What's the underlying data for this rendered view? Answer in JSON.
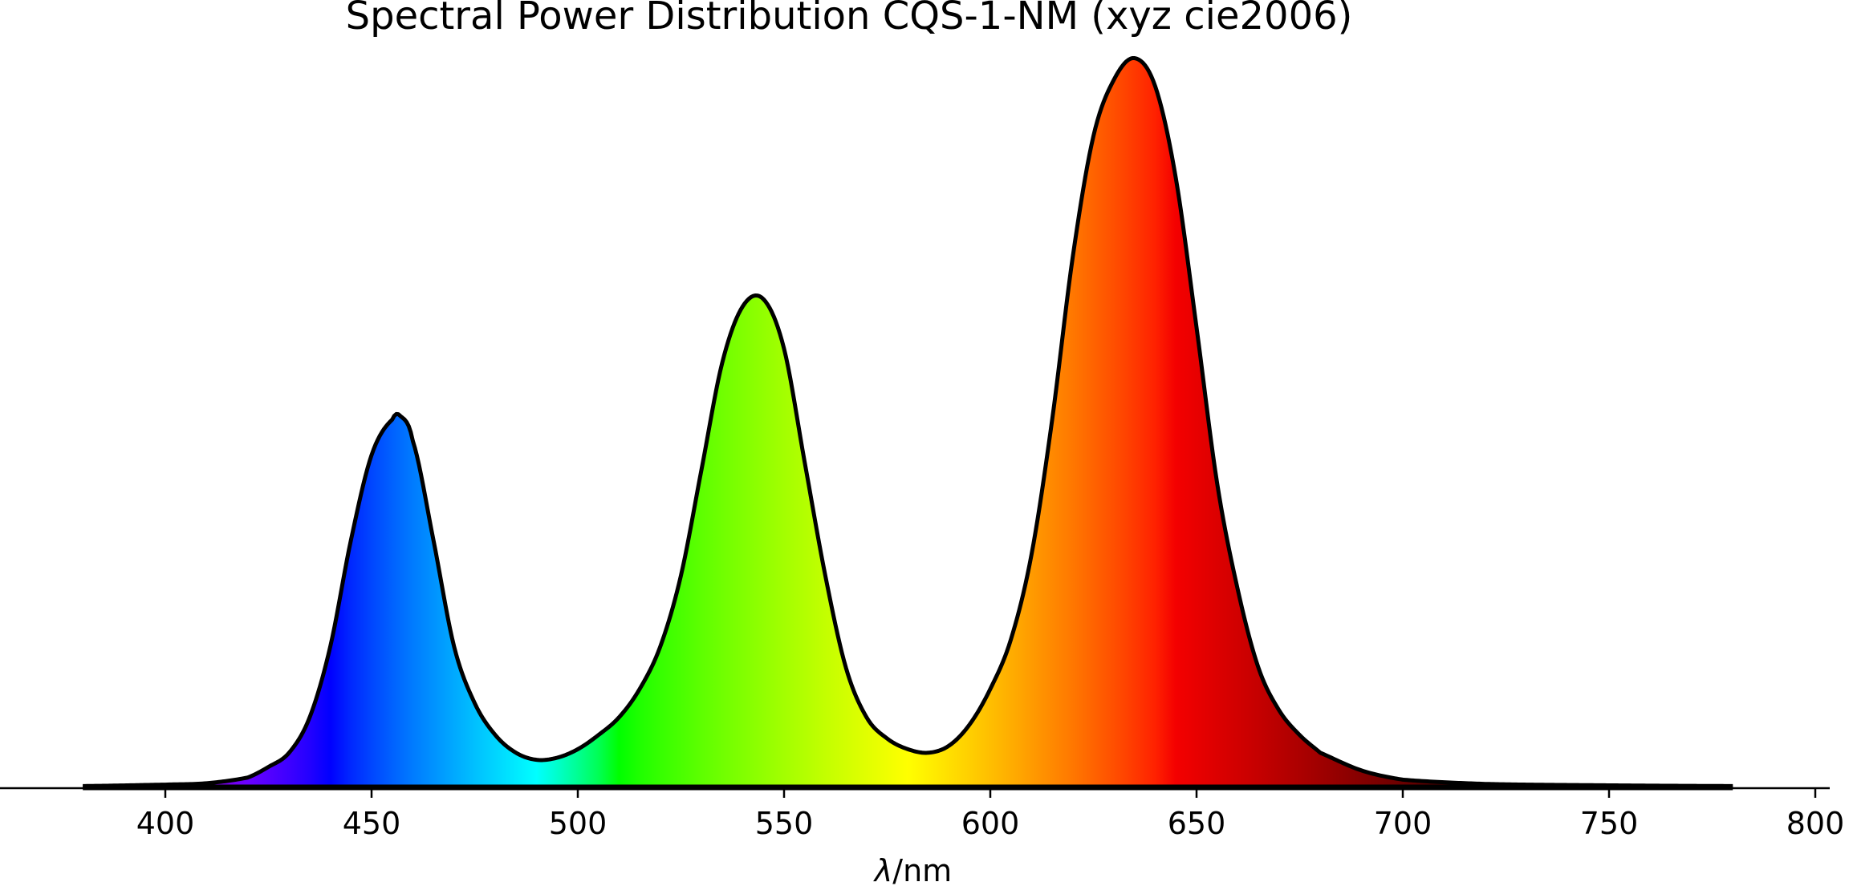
{
  "chart_data": {
    "type": "area",
    "title": "Spectral Power Distribution CQS-1-NM (xyz cie2006)",
    "xlabel_symbol": "λ",
    "xlabel_unit": "/nm",
    "xlim": [
      360,
      800
    ],
    "xticks": [
      400,
      450,
      500,
      550,
      600,
      650,
      700,
      750,
      800
    ],
    "ylim": [
      0,
      1.06
    ],
    "y_axis_visible": false,
    "grid": false,
    "legend": "none",
    "fill": "spectral-color gradient under curve",
    "curve_color": "#000000",
    "spd_range": [
      380,
      780
    ],
    "series": [
      {
        "x": [
          380,
          400,
          410,
          420,
          425,
          430,
          435,
          440,
          445,
          450,
          455,
          457,
          460,
          465,
          470,
          475,
          480,
          485,
          490,
          495,
          500,
          505,
          510,
          515,
          520,
          525,
          530,
          535,
          540,
          545,
          550,
          555,
          560,
          565,
          570,
          575,
          580,
          585,
          590,
          595,
          600,
          605,
          610,
          615,
          620,
          625,
          630,
          635,
          640,
          645,
          650,
          655,
          660,
          665,
          670,
          675,
          680,
          690,
          700,
          720,
          750,
          780
        ],
        "y": [
          0.003,
          0.005,
          0.007,
          0.015,
          0.03,
          0.05,
          0.1,
          0.2,
          0.35,
          0.47,
          0.52,
          0.525,
          0.49,
          0.35,
          0.2,
          0.12,
          0.075,
          0.05,
          0.04,
          0.043,
          0.055,
          0.075,
          0.1,
          0.14,
          0.2,
          0.3,
          0.45,
          0.6,
          0.68,
          0.69,
          0.62,
          0.46,
          0.3,
          0.17,
          0.1,
          0.07,
          0.055,
          0.05,
          0.06,
          0.09,
          0.14,
          0.21,
          0.33,
          0.52,
          0.75,
          0.92,
          1.0,
          1.03,
          0.99,
          0.86,
          0.65,
          0.43,
          0.28,
          0.17,
          0.11,
          0.075,
          0.05,
          0.025,
          0.012,
          0.006,
          0.004,
          0.003
        ]
      }
    ]
  }
}
